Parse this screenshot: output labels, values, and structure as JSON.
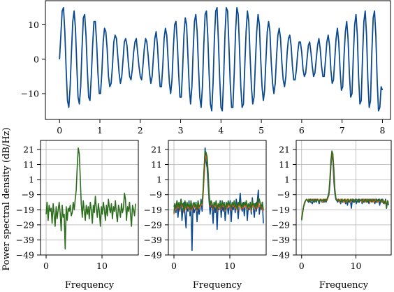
{
  "chart_data": [
    {
      "type": "line",
      "title": "",
      "xlabel": "",
      "ylabel": "",
      "xlim": [
        -0.35,
        8.2
      ],
      "ylim": [
        -17.5,
        17
      ],
      "xticks": [
        0,
        1,
        2,
        3,
        4,
        5,
        6,
        7,
        8
      ],
      "yticks": [
        -10,
        0,
        10
      ],
      "grid": false,
      "color": "#0b4a8f",
      "signal": {
        "duration": 8,
        "start_value": 0,
        "carrier_frequency": 4,
        "envelope_peak": 15,
        "envelope_min": 5,
        "envelope_min_times": [
          2.0,
          6.0
        ],
        "envelope_max_times": [
          0.0,
          3.9,
          8.0
        ],
        "noise": 1
      },
      "series": [
        {
          "values": [
            0,
            7,
            14,
            15,
            8,
            -3,
            -12,
            -14,
            -8,
            2,
            11,
            14,
            9,
            -1,
            -11,
            -13,
            -8,
            3,
            12,
            13,
            7,
            -3,
            -11,
            -12,
            -5,
            4,
            11,
            11,
            5,
            -4,
            -10,
            -10,
            -4,
            5,
            9,
            8,
            3,
            -5,
            -8,
            -7,
            -2,
            5,
            7,
            6,
            1,
            -4,
            -7,
            -5,
            0,
            5,
            6,
            4,
            -1,
            -5,
            -6,
            -3,
            2,
            5,
            6,
            2,
            -2,
            -5,
            -6,
            -2,
            3,
            6,
            5,
            1,
            -4,
            -7,
            -5,
            1,
            6,
            8,
            4,
            -3,
            -8,
            -8,
            -2,
            6,
            9,
            7,
            0,
            -7,
            -10,
            -6,
            3,
            10,
            11,
            5,
            -4,
            -11,
            -11,
            -3,
            7,
            12,
            10,
            1,
            -8,
            -13,
            -8,
            3,
            11,
            13,
            8,
            -2,
            -11,
            -14,
            -8,
            4,
            13,
            14,
            7,
            -4,
            -13,
            -15,
            -7,
            6,
            14,
            15,
            6,
            -5,
            -14,
            -15,
            -6,
            7,
            15,
            14,
            4,
            -7,
            -14,
            -14,
            -4,
            8,
            15,
            13,
            3,
            -8,
            -14,
            -13,
            -2,
            8,
            14,
            11,
            1,
            -8,
            -13,
            -11,
            -1,
            8,
            13,
            10,
            0,
            -8,
            -12,
            -9,
            0,
            8,
            11,
            8,
            -1,
            -7,
            -10,
            -7,
            1,
            7,
            9,
            6,
            -1,
            -6,
            -8,
            -5,
            2,
            6,
            7,
            4,
            -2,
            -6,
            -6,
            -3,
            2,
            5,
            5,
            2,
            -3,
            -5,
            -4,
            0,
            4,
            5,
            2,
            -2,
            -5,
            -4,
            0,
            4,
            6,
            3,
            -2,
            -5,
            -5,
            0,
            5,
            7,
            4,
            -3,
            -7,
            -6,
            0,
            6,
            9,
            5,
            -3,
            -9,
            -8,
            1,
            8,
            11,
            6,
            -4,
            -11,
            -10,
            1,
            10,
            13,
            7,
            -5,
            -13,
            -12,
            1,
            11,
            14,
            7,
            -6,
            -14,
            -12,
            2,
            12,
            14,
            7,
            -6,
            -15,
            -14,
            -8,
            -9
          ]
        }
      ]
    },
    {
      "type": "line",
      "title": "",
      "xlabel": "Frequency",
      "ylabel": "Power spectral density (dB/Hz)",
      "xlim": [
        -1,
        16.5
      ],
      "ylim": [
        -49,
        27
      ],
      "xticks": [
        0,
        10
      ],
      "yticks": [
        21,
        11,
        1,
        -9,
        -19,
        -29,
        -39,
        -49
      ],
      "grid": true,
      "series": [
        {
          "color": "#2d6e1e",
          "values": [
            -22,
            -14,
            -26,
            -16,
            -20,
            -18,
            -28,
            -15,
            -22,
            -30,
            -17,
            -25,
            -19,
            -14,
            -21,
            -33,
            -16,
            -24,
            -22,
            -45,
            -17,
            -26,
            -18,
            -20,
            -16,
            -23,
            -21,
            -14,
            -19,
            -12,
            -6,
            10,
            22,
            18,
            2,
            -15,
            -24,
            -13,
            -20,
            -26,
            -16,
            -22,
            -17,
            -25,
            -14,
            -19,
            -28,
            -16,
            -21,
            -10,
            -18,
            -24,
            -15,
            -20,
            -30,
            -17,
            -22,
            -14,
            -19,
            -26,
            -16,
            -23,
            -12,
            -18,
            -21,
            -15,
            -25,
            -17,
            -20,
            -13,
            -22,
            -27,
            -16,
            -19,
            -24,
            -15,
            -21,
            -18,
            -8,
            -12,
            -26,
            -17,
            -20,
            -14,
            -22,
            -30,
            -16,
            -19,
            -23,
            -15
          ]
        }
      ]
    },
    {
      "type": "line",
      "title": "",
      "xlabel": "Frequency",
      "ylabel": "",
      "xlim": [
        -1,
        16.5
      ],
      "ylim": [
        -49,
        27
      ],
      "xticks": [
        0,
        10
      ],
      "yticks": [
        21,
        11,
        1,
        -9,
        -19,
        -29,
        -39,
        -49
      ],
      "grid": true,
      "series": [
        {
          "color": "#0b4a8f",
          "values": [
            -17,
            -15,
            -21,
            -13,
            -24,
            -16,
            -19,
            -12,
            -26,
            -18,
            -14,
            -22,
            -31,
            -16,
            -20,
            -13,
            -23,
            -17,
            -46,
            -15,
            -21,
            -19,
            -14,
            -27,
            -16,
            -22,
            -18,
            -12,
            -20,
            -8,
            6,
            22,
            13,
            9,
            -2,
            -13,
            -22,
            -15,
            -18,
            -28,
            -14,
            -21,
            -17,
            -32,
            -15,
            -19,
            -13,
            -24,
            -16,
            -20,
            -14,
            -26,
            -18,
            -15,
            -22,
            -17,
            -13,
            -27,
            -16,
            -19,
            -14,
            -21,
            -12,
            -17,
            -25,
            -15,
            -8,
            -18,
            -20,
            -14,
            -23,
            -16,
            -13,
            -26,
            -17,
            -19,
            -14,
            -22,
            -11,
            -18,
            -24,
            -15,
            -20,
            -13,
            -6,
            -22,
            -16,
            -19,
            -14,
            -28
          ]
        },
        {
          "color": "#e85a1c",
          "values": [
            -22,
            -16,
            -19,
            -14,
            -18,
            -15,
            -20,
            -13,
            -17,
            -16,
            -21,
            -14,
            -19,
            -15,
            -18,
            -16,
            -20,
            -14,
            -19,
            -17,
            -15,
            -18,
            -16,
            -20,
            -14,
            -18,
            -17,
            -15,
            -16,
            -10,
            2,
            14,
            17,
            15,
            5,
            -9,
            -17,
            -14,
            -16,
            -19,
            -15,
            -17,
            -14,
            -20,
            -16,
            -18,
            -15,
            -19,
            -14,
            -17,
            -16,
            -20,
            -15,
            -18,
            -14,
            -17,
            -16,
            -19,
            -15,
            -17,
            -14,
            -18,
            -16,
            -20,
            -15,
            -17,
            -14,
            -19,
            -16,
            -18,
            -15,
            -17,
            -14,
            -19,
            -16,
            -18,
            -15,
            -20,
            -14,
            -17,
            -16,
            -19,
            -15,
            -18,
            -14,
            -17,
            -16,
            -19,
            -15,
            -20
          ]
        },
        {
          "color": "#2d6e1e",
          "values": [
            -21,
            -15,
            -18,
            -13,
            -17,
            -14,
            -19,
            -12,
            -16,
            -15,
            -20,
            -13,
            -18,
            -14,
            -17,
            -15,
            -19,
            -13,
            -18,
            -16,
            -14,
            -17,
            -15,
            -19,
            -13,
            -17,
            -16,
            -14,
            -15,
            -6,
            8,
            20,
            19,
            16,
            6,
            -8,
            -16,
            -13,
            -15,
            -18,
            -14,
            -16,
            -13,
            -19,
            -15,
            -17,
            -14,
            -18,
            -13,
            -16,
            -15,
            -19,
            -14,
            -17,
            -13,
            -16,
            -15,
            -18,
            -14,
            -16,
            -13,
            -17,
            -15,
            -19,
            -14,
            -16,
            -13,
            -18,
            -15,
            -17,
            -14,
            -16,
            -13,
            -18,
            -15,
            -17,
            -14,
            -19,
            -13,
            -16,
            -15,
            -18,
            -14,
            -17,
            -11,
            -12,
            -15,
            -18,
            -14,
            -19
          ]
        }
      ]
    },
    {
      "type": "line",
      "title": "",
      "xlabel": "Frequency",
      "ylabel": "",
      "xlim": [
        -1,
        16.5
      ],
      "ylim": [
        -49,
        27
      ],
      "xticks": [
        0,
        10
      ],
      "yticks": [
        21,
        11,
        1,
        -9,
        -19,
        -29,
        -39,
        -49
      ],
      "grid": true,
      "series": [
        {
          "color": "#0b4a8f",
          "values": [
            -25,
            -21,
            -17,
            -14,
            -13,
            -12,
            -13,
            -14,
            -13,
            -12,
            -14,
            -15,
            -13,
            -12,
            -13,
            -14,
            -12,
            -13,
            -15,
            -13,
            -12,
            -14,
            -13,
            -12,
            -13,
            -14,
            -12,
            -11,
            -9,
            -2,
            10,
            17,
            14,
            0,
            -8,
            -12,
            -13,
            -14,
            -12,
            -13,
            -15,
            -12,
            -14,
            -13,
            -12,
            -15,
            -13,
            -16,
            -12,
            -14,
            -13,
            -18,
            -12,
            -14,
            -13,
            -12,
            -15,
            -13,
            -12,
            -14,
            -13,
            -12,
            -15,
            -12,
            -14,
            -13,
            -12,
            -14,
            -13,
            -15,
            -12,
            -13,
            -14,
            -12,
            -13,
            -15,
            -12,
            -14,
            -13,
            -12,
            -16,
            -13,
            -12,
            -14,
            -13,
            -15,
            -12,
            -18,
            -13,
            -16
          ]
        },
        {
          "color": "#e85a1c",
          "values": [
            -24,
            -20,
            -17,
            -14,
            -13,
            -12,
            -13,
            -12,
            -13,
            -14,
            -12,
            -13,
            -12,
            -14,
            -13,
            -12,
            -13,
            -12,
            -14,
            -13,
            -12,
            -13,
            -14,
            -12,
            -13,
            -12,
            -13,
            -11,
            -8,
            0,
            12,
            18,
            16,
            4,
            -6,
            -11,
            -13,
            -12,
            -13,
            -14,
            -12,
            -13,
            -12,
            -14,
            -13,
            -12,
            -14,
            -13,
            -12,
            -13,
            -14,
            -12,
            -13,
            -12,
            -14,
            -13,
            -12,
            -13,
            -14,
            -12,
            -13,
            -12,
            -14,
            -13,
            -12,
            -13,
            -14,
            -12,
            -13,
            -12,
            -14,
            -13,
            -12,
            -13,
            -14,
            -12,
            -13,
            -12,
            -14,
            -13,
            -12,
            -13,
            -14,
            -12,
            -13,
            -15,
            -13,
            -17,
            -13,
            -14
          ]
        },
        {
          "color": "#2d6e1e",
          "values": [
            -26,
            -21,
            -17,
            -15,
            -13,
            -12,
            -13,
            -13,
            -12,
            -14,
            -13,
            -12,
            -13,
            -14,
            -12,
            -13,
            -12,
            -13,
            -14,
            -12,
            -13,
            -13,
            -12,
            -14,
            -12,
            -13,
            -12,
            -10,
            -7,
            2,
            14,
            20,
            18,
            8,
            -5,
            -11,
            -13,
            -13,
            -12,
            -13,
            -14,
            -12,
            -13,
            -13,
            -12,
            -14,
            -13,
            -12,
            -13,
            -14,
            -12,
            -13,
            -13,
            -12,
            -14,
            -13,
            -12,
            -13,
            -14,
            -12,
            -13,
            -13,
            -12,
            -14,
            -13,
            -12,
            -13,
            -14,
            -12,
            -13,
            -13,
            -12,
            -14,
            -13,
            -12,
            -13,
            -14,
            -12,
            -13,
            -13,
            -12,
            -14,
            -13,
            -12,
            -15,
            -14,
            -13,
            -18,
            -13,
            -15
          ]
        }
      ]
    }
  ]
}
